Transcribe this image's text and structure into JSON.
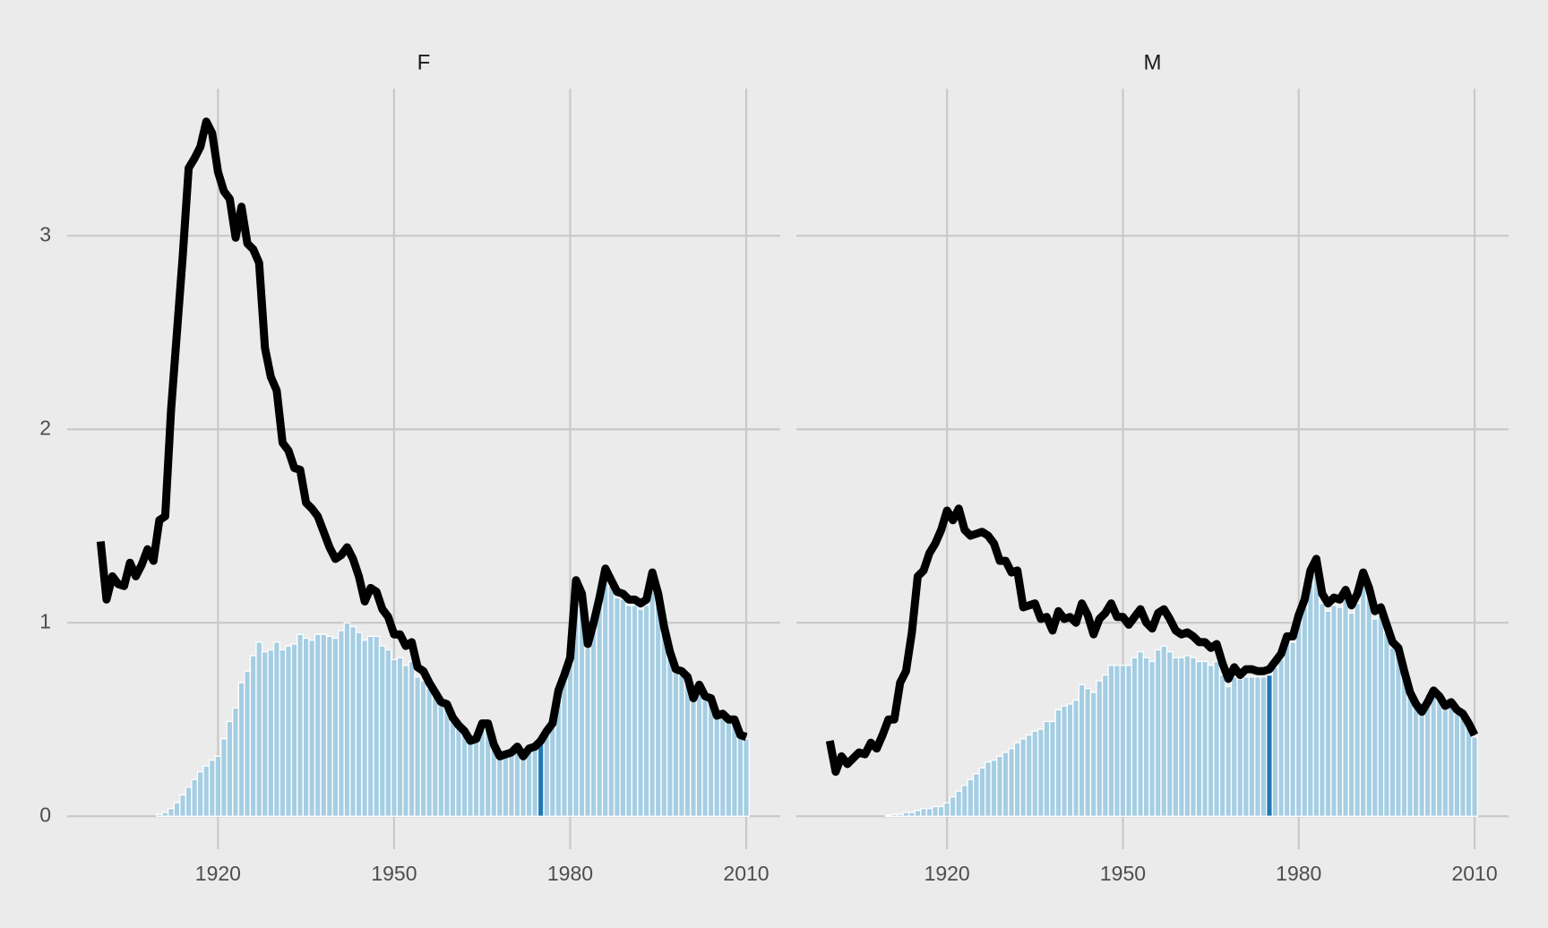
{
  "chart_data": [
    {
      "type": "bar_line",
      "title": "F",
      "x": [
        1900,
        1901,
        1902,
        1903,
        1904,
        1905,
        1906,
        1907,
        1908,
        1909,
        1910,
        1911,
        1912,
        1913,
        1914,
        1915,
        1916,
        1917,
        1918,
        1919,
        1920,
        1921,
        1922,
        1923,
        1924,
        1925,
        1926,
        1927,
        1928,
        1929,
        1930,
        1931,
        1932,
        1933,
        1934,
        1935,
        1936,
        1937,
        1938,
        1939,
        1940,
        1941,
        1942,
        1943,
        1944,
        1945,
        1946,
        1947,
        1948,
        1949,
        1950,
        1951,
        1952,
        1953,
        1954,
        1955,
        1956,
        1957,
        1958,
        1959,
        1960,
        1961,
        1962,
        1963,
        1964,
        1965,
        1966,
        1967,
        1968,
        1969,
        1970,
        1971,
        1972,
        1973,
        1974,
        1975,
        1976,
        1977,
        1978,
        1979,
        1980,
        1981,
        1982,
        1983,
        1984,
        1985,
        1986,
        1987,
        1988,
        1989,
        1990,
        1991,
        1992,
        1993,
        1994,
        1995,
        1996,
        1997,
        1998,
        1999,
        2000,
        2001,
        2002,
        2003,
        2004,
        2005,
        2006,
        2007,
        2008,
        2009,
        2010
      ],
      "series": [
        {
          "type": "bar",
          "color": "#a6cee3",
          "values": [
            0,
            0,
            0,
            0,
            0,
            0,
            0,
            0,
            0,
            0,
            0.01,
            0.02,
            0.04,
            0.07,
            0.11,
            0.15,
            0.19,
            0.23,
            0.26,
            0.29,
            0.31,
            0.4,
            0.49,
            0.56,
            0.69,
            0.75,
            0.83,
            0.9,
            0.85,
            0.86,
            0.9,
            0.86,
            0.88,
            0.89,
            0.94,
            0.92,
            0.91,
            0.94,
            0.94,
            0.93,
            0.92,
            0.96,
            1.0,
            0.98,
            0.95,
            0.91,
            0.93,
            0.93,
            0.88,
            0.86,
            0.81,
            0.82,
            0.78,
            0.8,
            0.72,
            0.7,
            0.66,
            0.62,
            0.57,
            0.56,
            0.49,
            0.45,
            0.42,
            0.38,
            0.39,
            0.46,
            0.46,
            0.36,
            0.3,
            0.31,
            0.32,
            0.35,
            0.3,
            0.34,
            0.35,
            0.38,
            0.42,
            0.46,
            0.63,
            0.71,
            0.8,
            1.18,
            1.12,
            0.87,
            0.97,
            1.1,
            1.24,
            1.19,
            1.13,
            1.12,
            1.09,
            1.09,
            1.07,
            1.09,
            1.22,
            1.12,
            0.95,
            0.83,
            0.74,
            0.73,
            0.7,
            0.6,
            0.66,
            0.6,
            0.59,
            0.51,
            0.52,
            0.49,
            0.49,
            0.41,
            0.4
          ]
        },
        {
          "type": "line",
          "color": "#000000",
          "values": [
            1.42,
            1.12,
            1.24,
            1.2,
            1.19,
            1.31,
            1.24,
            1.3,
            1.38,
            1.32,
            1.53,
            1.55,
            2.1,
            2.5,
            2.9,
            3.35,
            3.4,
            3.46,
            3.59,
            3.53,
            3.33,
            3.23,
            3.19,
            2.99,
            3.15,
            2.96,
            2.93,
            2.86,
            2.42,
            2.27,
            2.2,
            1.93,
            1.89,
            1.8,
            1.79,
            1.62,
            1.59,
            1.55,
            1.47,
            1.39,
            1.33,
            1.35,
            1.39,
            1.33,
            1.24,
            1.11,
            1.18,
            1.16,
            1.07,
            1.03,
            0.94,
            0.94,
            0.88,
            0.9,
            0.77,
            0.75,
            0.69,
            0.64,
            0.59,
            0.58,
            0.51,
            0.47,
            0.44,
            0.39,
            0.4,
            0.48,
            0.48,
            0.37,
            0.31,
            0.32,
            0.33,
            0.36,
            0.31,
            0.35,
            0.36,
            0.39,
            0.44,
            0.48,
            0.65,
            0.73,
            0.82,
            1.22,
            1.15,
            0.89,
            1.0,
            1.13,
            1.28,
            1.22,
            1.16,
            1.15,
            1.12,
            1.12,
            1.1,
            1.12,
            1.26,
            1.15,
            0.98,
            0.85,
            0.76,
            0.75,
            0.72,
            0.61,
            0.68,
            0.62,
            0.61,
            0.52,
            0.53,
            0.5,
            0.5,
            0.42,
            0.41
          ]
        }
      ],
      "highlight": {
        "x": 1975,
        "color": "#1f78b4"
      },
      "xlim": [
        1894.3,
        2015.8
      ],
      "xticks": [
        1920,
        1950,
        1980,
        2010
      ],
      "ylim": [
        -0.17,
        3.76
      ],
      "yticks": [
        0,
        1,
        2,
        3
      ],
      "show_ytick_labels": true,
      "grid": true
    },
    {
      "type": "bar_line",
      "title": "M",
      "x": [
        1900,
        1901,
        1902,
        1903,
        1904,
        1905,
        1906,
        1907,
        1908,
        1909,
        1910,
        1911,
        1912,
        1913,
        1914,
        1915,
        1916,
        1917,
        1918,
        1919,
        1920,
        1921,
        1922,
        1923,
        1924,
        1925,
        1926,
        1927,
        1928,
        1929,
        1930,
        1931,
        1932,
        1933,
        1934,
        1935,
        1936,
        1937,
        1938,
        1939,
        1940,
        1941,
        1942,
        1943,
        1944,
        1945,
        1946,
        1947,
        1948,
        1949,
        1950,
        1951,
        1952,
        1953,
        1954,
        1955,
        1956,
        1957,
        1958,
        1959,
        1960,
        1961,
        1962,
        1963,
        1964,
        1965,
        1966,
        1967,
        1968,
        1969,
        1970,
        1971,
        1972,
        1973,
        1974,
        1975,
        1976,
        1977,
        1978,
        1979,
        1980,
        1981,
        1982,
        1983,
        1984,
        1985,
        1986,
        1987,
        1988,
        1989,
        1990,
        1991,
        1992,
        1993,
        1994,
        1995,
        1996,
        1997,
        1998,
        1999,
        2000,
        2001,
        2002,
        2003,
        2004,
        2005,
        2006,
        2007,
        2008,
        2009,
        2010
      ],
      "series": [
        {
          "type": "bar",
          "color": "#a6cee3",
          "values": [
            0,
            0,
            0,
            0,
            0,
            0,
            0,
            0,
            0,
            0,
            0.005,
            0.01,
            0.01,
            0.02,
            0.02,
            0.03,
            0.04,
            0.04,
            0.05,
            0.05,
            0.07,
            0.1,
            0.13,
            0.16,
            0.19,
            0.22,
            0.25,
            0.28,
            0.29,
            0.31,
            0.33,
            0.35,
            0.38,
            0.4,
            0.42,
            0.44,
            0.45,
            0.49,
            0.49,
            0.55,
            0.57,
            0.58,
            0.6,
            0.68,
            0.66,
            0.64,
            0.7,
            0.73,
            0.78,
            0.78,
            0.78,
            0.78,
            0.82,
            0.85,
            0.82,
            0.8,
            0.86,
            0.88,
            0.85,
            0.82,
            0.82,
            0.83,
            0.82,
            0.8,
            0.8,
            0.78,
            0.8,
            0.73,
            0.67,
            0.72,
            0.71,
            0.72,
            0.72,
            0.72,
            0.72,
            0.73,
            0.77,
            0.81,
            0.9,
            0.9,
            1.0,
            1.08,
            1.2,
            1.25,
            1.1,
            1.06,
            1.09,
            1.08,
            1.12,
            1.05,
            1.1,
            1.2,
            1.13,
            1.02,
            1.04,
            0.95,
            0.87,
            0.84,
            0.72,
            0.62,
            0.56,
            0.53,
            0.57,
            0.63,
            0.6,
            0.55,
            0.57,
            0.53,
            0.51,
            0.46,
            0.41
          ]
        },
        {
          "type": "line",
          "color": "#000000",
          "values": [
            0.39,
            0.23,
            0.31,
            0.27,
            0.3,
            0.33,
            0.32,
            0.38,
            0.35,
            0.42,
            0.5,
            0.5,
            0.69,
            0.75,
            0.95,
            1.24,
            1.27,
            1.36,
            1.41,
            1.48,
            1.58,
            1.53,
            1.59,
            1.48,
            1.45,
            1.46,
            1.47,
            1.45,
            1.41,
            1.32,
            1.32,
            1.26,
            1.27,
            1.08,
            1.09,
            1.1,
            1.02,
            1.03,
            0.96,
            1.06,
            1.02,
            1.03,
            1.0,
            1.1,
            1.04,
            0.94,
            1.02,
            1.05,
            1.1,
            1.03,
            1.03,
            0.99,
            1.03,
            1.07,
            1.0,
            0.97,
            1.05,
            1.07,
            1.02,
            0.96,
            0.94,
            0.95,
            0.93,
            0.9,
            0.9,
            0.87,
            0.89,
            0.79,
            0.71,
            0.77,
            0.73,
            0.76,
            0.76,
            0.75,
            0.75,
            0.76,
            0.8,
            0.84,
            0.93,
            0.93,
            1.04,
            1.12,
            1.27,
            1.33,
            1.15,
            1.1,
            1.13,
            1.12,
            1.17,
            1.09,
            1.15,
            1.26,
            1.18,
            1.06,
            1.08,
            0.99,
            0.9,
            0.87,
            0.75,
            0.64,
            0.58,
            0.54,
            0.59,
            0.65,
            0.62,
            0.57,
            0.59,
            0.55,
            0.53,
            0.48,
            0.42
          ]
        }
      ],
      "highlight": {
        "x": 1975,
        "color": "#1f78b4"
      },
      "xlim": [
        1894.3,
        2015.8
      ],
      "xticks": [
        1920,
        1950,
        1980,
        2010
      ],
      "ylim": [
        -0.17,
        3.76
      ],
      "yticks": [
        0,
        1,
        2,
        3
      ],
      "show_ytick_labels": false,
      "grid": true
    }
  ]
}
